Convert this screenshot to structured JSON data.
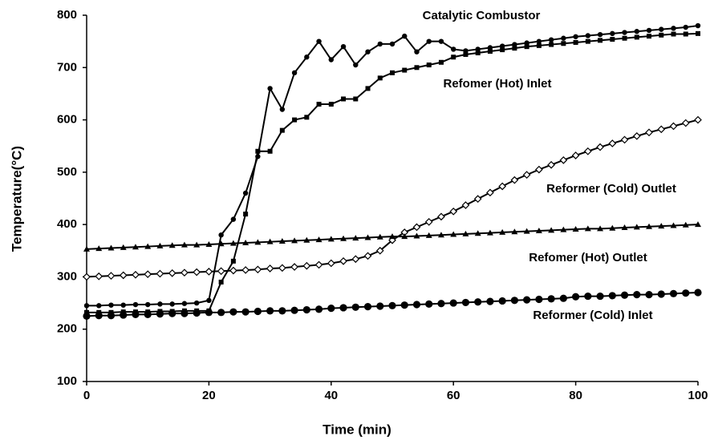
{
  "chart_data": {
    "type": "line",
    "xlabel": "Time (min)",
    "ylabel": "Temperature(°C)",
    "x": [
      0,
      2,
      4,
      6,
      8,
      10,
      12,
      14,
      16,
      18,
      20,
      22,
      24,
      26,
      28,
      30,
      32,
      34,
      36,
      38,
      40,
      42,
      44,
      46,
      48,
      50,
      52,
      54,
      56,
      58,
      60,
      62,
      64,
      66,
      68,
      70,
      72,
      74,
      76,
      78,
      80,
      82,
      84,
      86,
      88,
      90,
      92,
      94,
      96,
      98,
      100
    ],
    "xlim": [
      0,
      100
    ],
    "xticks": [
      0,
      20,
      40,
      60,
      80,
      100
    ],
    "ylim": [
      100,
      800
    ],
    "yticks": [
      100,
      200,
      300,
      400,
      500,
      600,
      700,
      800
    ],
    "grid": false,
    "series": [
      {
        "name": "Catalytic Combustor",
        "color": "#000000",
        "marker": "circle",
        "values": [
          245,
          245,
          246,
          246,
          247,
          247,
          248,
          248,
          249,
          250,
          255,
          380,
          410,
          460,
          530,
          660,
          620,
          690,
          720,
          750,
          715,
          740,
          705,
          730,
          745,
          745,
          760,
          730,
          750,
          750,
          735,
          732,
          735,
          738,
          741,
          744,
          747,
          750,
          753,
          756,
          759,
          761,
          763,
          765,
          767,
          769,
          771,
          773,
          775,
          777,
          780
        ]
      },
      {
        "name": "Refomer (Hot) Inlet",
        "color": "#000000",
        "marker": "square",
        "values": [
          232,
          232,
          232,
          233,
          233,
          233,
          234,
          234,
          235,
          235,
          235,
          290,
          330,
          420,
          540,
          540,
          580,
          600,
          605,
          630,
          630,
          640,
          640,
          660,
          680,
          690,
          695,
          700,
          705,
          710,
          720,
          725,
          728,
          731,
          734,
          737,
          740,
          742,
          744,
          746,
          748,
          750,
          752,
          754,
          756,
          758,
          760,
          762,
          764,
          764,
          765
        ]
      },
      {
        "name": "Reformer (Cold) Outlet",
        "color": "#000000",
        "marker": "diamond",
        "values": [
          300,
          301,
          302,
          303,
          304,
          305,
          306,
          307,
          308,
          309,
          310,
          311,
          312,
          313,
          314,
          316,
          317,
          319,
          321,
          323,
          326,
          330,
          334,
          340,
          350,
          370,
          385,
          395,
          405,
          415,
          425,
          437,
          449,
          461,
          473,
          485,
          495,
          505,
          514,
          523,
          532,
          540,
          548,
          555,
          562,
          569,
          576,
          582,
          588,
          594,
          600
        ]
      },
      {
        "name": "Refomer (Hot) Outlet",
        "color": "#000000",
        "marker": "triangle",
        "values": [
          353,
          354,
          355,
          356,
          357,
          358,
          359,
          360,
          361,
          361,
          362,
          363,
          364,
          365,
          366,
          367,
          368,
          369,
          370,
          371,
          372,
          373,
          374,
          375,
          376,
          377,
          377,
          378,
          379,
          380,
          381,
          382,
          383,
          384,
          385,
          386,
          387,
          388,
          389,
          390,
          391,
          392,
          392,
          393,
          394,
          395,
          396,
          397,
          398,
          399,
          400
        ]
      },
      {
        "name": "Reformer (Cold) Inlet",
        "color": "#000000",
        "marker": "bigcircle",
        "values": [
          225,
          226,
          226,
          227,
          228,
          228,
          229,
          230,
          230,
          231,
          232,
          232,
          233,
          233,
          234,
          235,
          235,
          236,
          237,
          238,
          240,
          241,
          242,
          243,
          244,
          245,
          246,
          247,
          248,
          249,
          250,
          251,
          252,
          253,
          254,
          255,
          256,
          257,
          258,
          259,
          262,
          263,
          263,
          264,
          265,
          266,
          266,
          267,
          268,
          269,
          270
        ]
      }
    ]
  }
}
